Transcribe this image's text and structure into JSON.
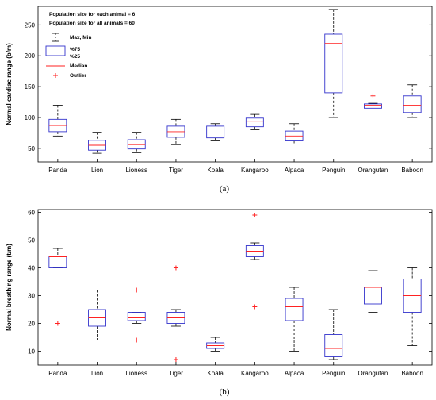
{
  "chart_data": [
    {
      "type": "box",
      "caption": "(a)",
      "ylabel": "Normal cardiac range (b/m)",
      "ylim": [
        28,
        280
      ],
      "yticks": [
        50,
        100,
        150,
        200,
        250
      ],
      "categories": [
        "Panda",
        "Lion",
        "Lioness",
        "Tiger",
        "Koala",
        "Kangaroo",
        "Alpaca",
        "Penguin",
        "Orangutan",
        "Baboon"
      ],
      "boxes": [
        {
          "min": 70,
          "q1": 77,
          "median": 87,
          "q3": 97,
          "max": 120,
          "outliers": []
        },
        {
          "min": 42,
          "q1": 47,
          "median": 55,
          "q3": 63,
          "max": 76,
          "outliers": []
        },
        {
          "min": 43,
          "q1": 49,
          "median": 56,
          "q3": 64,
          "max": 76,
          "outliers": []
        },
        {
          "min": 56,
          "q1": 68,
          "median": 77,
          "q3": 86,
          "max": 97,
          "outliers": []
        },
        {
          "min": 62,
          "q1": 67,
          "median": 75,
          "q3": 86,
          "max": 90,
          "outliers": []
        },
        {
          "min": 80,
          "q1": 85,
          "median": 94,
          "q3": 99,
          "max": 105,
          "outliers": []
        },
        {
          "min": 57,
          "q1": 62,
          "median": 70,
          "q3": 78,
          "max": 90,
          "outliers": []
        },
        {
          "min": 100,
          "q1": 140,
          "median": 220,
          "q3": 235,
          "max": 275,
          "outliers": []
        },
        {
          "min": 107,
          "q1": 115,
          "median": 120,
          "q3": 122,
          "max": 123,
          "outliers": [
            135
          ]
        },
        {
          "min": 100,
          "q1": 108,
          "median": 120,
          "q3": 135,
          "max": 153,
          "outliers": []
        }
      ],
      "legend": {
        "header_lines": [
          "Population size for each animal = 6",
          "Population size for all animals = 60"
        ],
        "max_min": "Max, Min",
        "q75": "%75",
        "q25": "%25",
        "median": "Median",
        "outlier": "Outlier",
        "placement": "top-left"
      }
    },
    {
      "type": "box",
      "caption": "(b)",
      "ylabel": "Normal breathing range (t/m)",
      "ylim": [
        5,
        61
      ],
      "yticks": [
        10,
        20,
        30,
        40,
        50,
        60
      ],
      "categories": [
        "Panda",
        "Lion",
        "Lioness",
        "Tiger",
        "Koala",
        "Kangaroo",
        "Alpaca",
        "Penguin",
        "Orangutan",
        "Baboon"
      ],
      "boxes": [
        {
          "min": 40,
          "q1": 40,
          "median": 44,
          "q3": 44,
          "max": 47,
          "outliers": [
            20
          ]
        },
        {
          "min": 14,
          "q1": 19,
          "median": 22,
          "q3": 25,
          "max": 32,
          "outliers": []
        },
        {
          "min": 20,
          "q1": 21,
          "median": 22,
          "q3": 24,
          "max": 24,
          "outliers": [
            32,
            14
          ]
        },
        {
          "min": 19,
          "q1": 20,
          "median": 22,
          "q3": 24,
          "max": 25,
          "outliers": [
            40,
            7
          ]
        },
        {
          "min": 10,
          "q1": 11,
          "median": 12,
          "q3": 13,
          "max": 15,
          "outliers": []
        },
        {
          "min": 43,
          "q1": 44,
          "median": 46,
          "q3": 48,
          "max": 49,
          "outliers": [
            59,
            26
          ]
        },
        {
          "min": 10,
          "q1": 21,
          "median": 26,
          "q3": 29,
          "max": 33,
          "outliers": []
        },
        {
          "min": 7,
          "q1": 8,
          "median": 11,
          "q3": 16,
          "max": 25,
          "outliers": []
        },
        {
          "min": 24,
          "q1": 27,
          "median": 33,
          "q3": 33,
          "max": 39,
          "outliers": []
        },
        {
          "min": 12,
          "q1": 24,
          "median": 30,
          "q3": 36,
          "max": 40,
          "outliers": []
        }
      ]
    }
  ],
  "colors": {
    "box": "#3333cc",
    "median": "#ff2222",
    "whisker": "#000000",
    "outlier": "#ff2222",
    "axis": "#000000"
  }
}
